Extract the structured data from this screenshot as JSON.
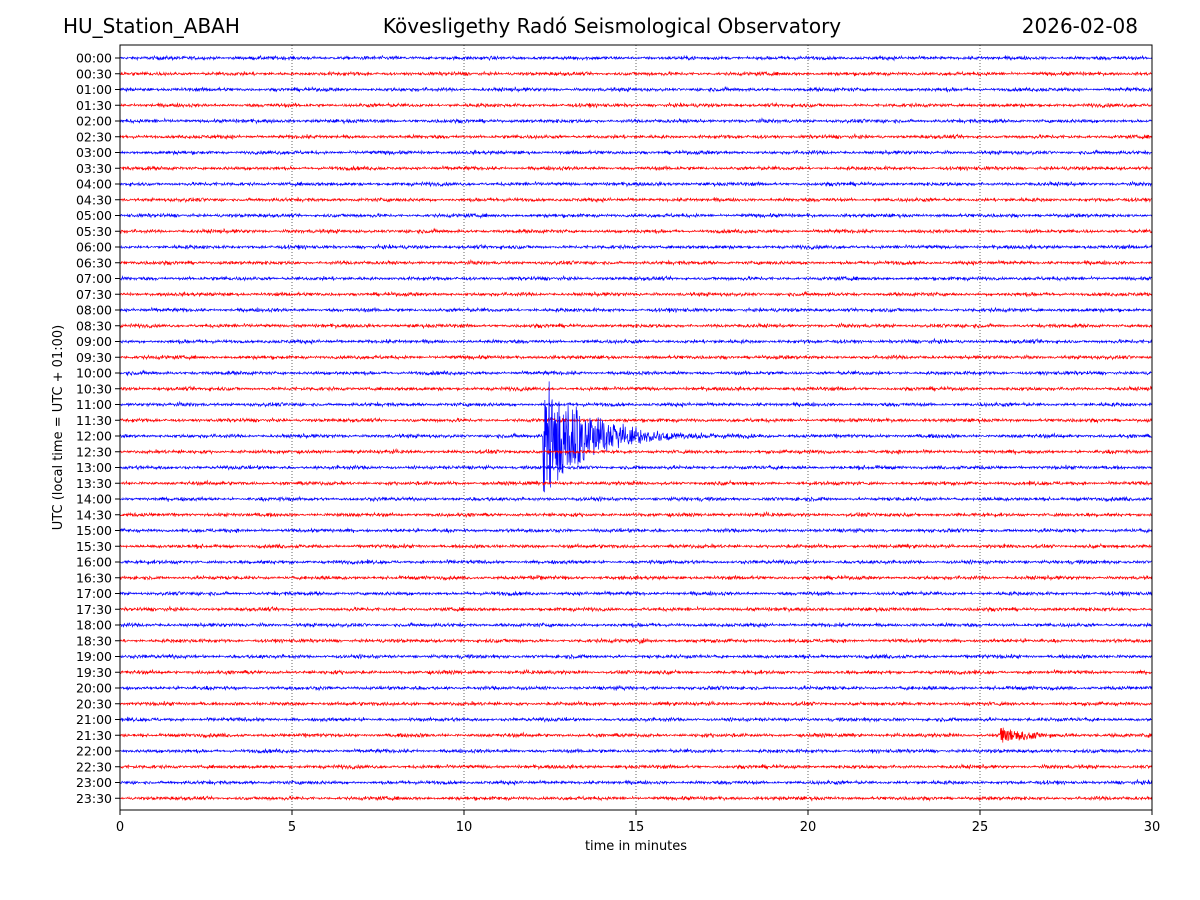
{
  "header": {
    "station": "HU_Station_ABAH",
    "title": "Kövesligethy Radó Seismological Observatory",
    "date": "2026-02-08"
  },
  "chart_data": {
    "type": "line",
    "title": "Kövesligethy Radó Seismological Observatory",
    "xlabel": "time in minutes",
    "ylabel": "UTC (local time = UTC + 01:00)",
    "xlim": [
      0,
      30
    ],
    "x_ticks": [
      0,
      5,
      10,
      15,
      20,
      25,
      30
    ],
    "x_tick_labels": [
      "0",
      "5",
      "10",
      "15",
      "20",
      "25",
      "30"
    ],
    "grid": "vertical dotted lines at each x tick",
    "rows": [
      "00:00",
      "00:30",
      "01:00",
      "01:30",
      "02:00",
      "02:30",
      "03:00",
      "03:30",
      "04:00",
      "04:30",
      "05:00",
      "05:30",
      "06:00",
      "06:30",
      "07:00",
      "07:30",
      "08:00",
      "08:30",
      "09:00",
      "09:30",
      "10:00",
      "10:30",
      "11:00",
      "11:30",
      "12:00",
      "12:30",
      "13:00",
      "13:30",
      "14:00",
      "14:30",
      "15:00",
      "15:30",
      "16:00",
      "16:30",
      "17:00",
      "17:30",
      "18:00",
      "18:30",
      "19:00",
      "19:30",
      "20:00",
      "20:30",
      "21:00",
      "21:30",
      "22:00",
      "22:30",
      "23:00",
      "23:30"
    ],
    "row_colors": [
      "#0000ff",
      "#ff0000"
    ],
    "noise_amplitude_rows": 0.09,
    "events": [
      {
        "row": "12:00",
        "start_min": 12.3,
        "decay_end_min": 19.5,
        "peak_amplitude_rows": 4.0,
        "description": "large earthquake"
      },
      {
        "row": "16:30",
        "start_min": 11.8,
        "decay_end_min": 15.0,
        "peak_amplitude_rows": 0.18
      },
      {
        "row": "18:30",
        "start_min": 15.1,
        "decay_end_min": 16.7,
        "peak_amplitude_rows": 0.2
      },
      {
        "row": "21:30",
        "start_min": 25.6,
        "decay_end_min": 30.0,
        "peak_amplitude_rows": 0.55
      }
    ]
  }
}
